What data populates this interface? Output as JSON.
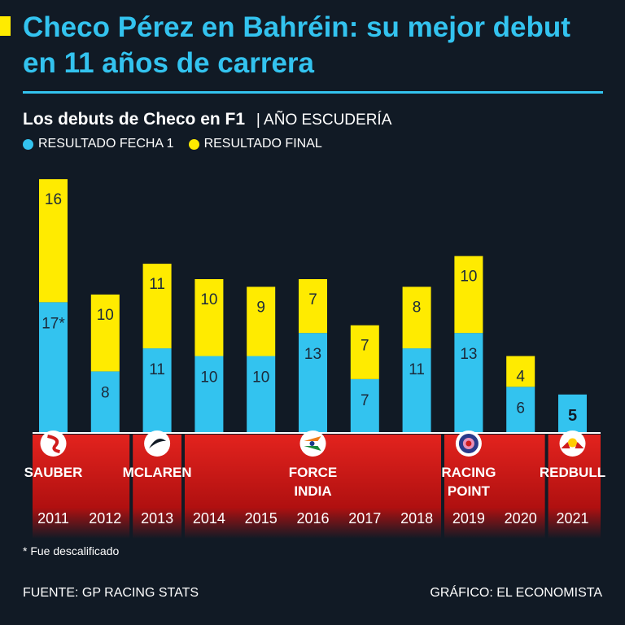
{
  "header": {
    "title": "Checo Pérez en Bahréin: su mejor debut en 11 años de carrera",
    "subtitle_bold": "Los debuts de Checo en F1",
    "subtitle_rest": "| AÑO ESCUDERÍA"
  },
  "legend": [
    {
      "label": "RESULTADO FECHA 1",
      "color": "#33c3ef"
    },
    {
      "label": "RESULTADO FINAL",
      "color": "#ffeb00"
    }
  ],
  "chart_data": {
    "type": "bar",
    "stacked": true,
    "categories": [
      "2011",
      "2012",
      "2013",
      "2014",
      "2015",
      "2016",
      "2017",
      "2018",
      "2019",
      "2020",
      "2021"
    ],
    "series": [
      {
        "name": "RESULTADO FECHA 1",
        "color": "#33c3ef",
        "values": [
          17,
          8,
          11,
          10,
          10,
          13,
          7,
          11,
          13,
          6,
          5
        ],
        "labels": [
          "17*",
          "8",
          "11",
          "10",
          "10",
          "13",
          "7",
          "11",
          "13",
          "6",
          "5"
        ]
      },
      {
        "name": "RESULTADO FINAL",
        "color": "#ffeb00",
        "values": [
          16,
          10,
          11,
          10,
          9,
          7,
          7,
          8,
          10,
          4,
          null
        ],
        "labels": [
          "16",
          "10",
          "11",
          "10",
          "9",
          "7",
          "7",
          "8",
          "10",
          "4",
          ""
        ]
      }
    ],
    "teams": [
      {
        "name": "SAUBER",
        "lines": [
          "SAUBER"
        ],
        "years": [
          "2011",
          "2012"
        ],
        "icon": "sauber-logo",
        "label_at": "2011"
      },
      {
        "name": "MCLAREN",
        "lines": [
          "MCLAREN"
        ],
        "years": [
          "2013"
        ],
        "icon": "mclaren-logo",
        "label_at": "2013"
      },
      {
        "name": "FORCE INDIA",
        "lines": [
          "FORCE",
          "INDIA"
        ],
        "years": [
          "2014",
          "2015",
          "2016",
          "2017",
          "2018"
        ],
        "icon": "force-india-logo",
        "label_at": "2016"
      },
      {
        "name": "RACING POINT",
        "lines": [
          "RACING",
          "POINT"
        ],
        "years": [
          "2019",
          "2020"
        ],
        "icon": "racing-point-logo",
        "label_at": "2019"
      },
      {
        "name": "REDBULL",
        "lines": [
          "REDBULL"
        ],
        "years": [
          "2021"
        ],
        "icon": "redbull-logo",
        "label_at": "2021"
      }
    ],
    "highlight": "2021"
  },
  "footnote": "* Fue descalificado",
  "source": "FUENTE: GP RACING STATS",
  "credit": "GRÁFICO: EL ECONOMISTA"
}
